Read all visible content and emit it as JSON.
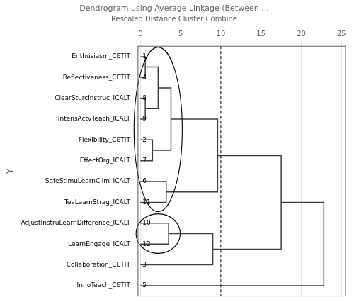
{
  "chart_data": {
    "type": "dendrogram",
    "title": "Dendrogram using Average Linkage (Between ...",
    "subtitle": "Rescaled Distance Cluster Combine",
    "ylabel": "Y",
    "categories": [
      "Enthusiasm_CETIT",
      "Reflectiveness_CETIT",
      "ClearSturcInstruc_ICALT",
      "IntensActvTeach_ICALT",
      "Flexibility_CETIT",
      "EffectOrg_ICALT",
      "SafeStimuLearnClim_ICALT",
      "TeaLearnStrag_ICALT",
      "AdjustInstruLearnDifference_ICALT",
      "LearnEngage_ICALT",
      "Collaboration_CETIT",
      "InnoTeach_CETIT"
    ],
    "case_numbers": [
      1,
      4,
      8,
      9,
      2,
      7,
      6,
      11,
      10,
      12,
      3,
      5
    ],
    "merges": [
      {
        "clusters": [
          [
            "Enthusiasm_CETIT"
          ],
          [
            "Reflectiveness_CETIT"
          ]
        ],
        "distance": 0.6
      },
      {
        "clusters": [
          [
            "ClearSturcInstruc_ICALT"
          ],
          [
            "IntensActvTeach_ICALT"
          ]
        ],
        "distance": 0.6
      },
      {
        "clusters": [
          [
            "Enthusiasm_CETIT",
            "Reflectiveness_CETIT"
          ],
          [
            "ClearSturcInstruc_ICALT",
            "IntensActvTeach_ICALT"
          ]
        ],
        "distance": 2.2
      },
      {
        "clusters": [
          [
            "Flexibility_CETIT"
          ],
          [
            "EffectOrg_ICALT"
          ]
        ],
        "distance": 1.5
      },
      {
        "clusters": [
          [
            "Enthusiasm_CETIT",
            "Reflectiveness_CETIT",
            "ClearSturcInstruc_ICALT",
            "IntensActvTeach_ICALT"
          ],
          [
            "Flexibility_CETIT",
            "EffectOrg_ICALT"
          ]
        ],
        "distance": 3.8
      },
      {
        "clusters": [
          [
            "SafeStimuLearnClim_ICALT"
          ],
          [
            "TeaLearnStrag_ICALT"
          ]
        ],
        "distance": 3.2
      },
      {
        "clusters": [
          [
            "Enthusiasm_CETIT",
            "Reflectiveness_CETIT",
            "ClearSturcInstruc_ICALT",
            "IntensActvTeach_ICALT",
            "Flexibility_CETIT",
            "EffectOrg_ICALT"
          ],
          [
            "SafeStimuLearnClim_ICALT",
            "TeaLearnStrag_ICALT"
          ]
        ],
        "distance": 9.6
      },
      {
        "clusters": [
          [
            "AdjustInstruLearnDifference_ICALT"
          ],
          [
            "LearnEngage_ICALT"
          ]
        ],
        "distance": 3.5
      },
      {
        "clusters": [
          [
            "AdjustInstruLearnDifference_ICALT",
            "LearnEngage_ICALT"
          ],
          [
            "Collaboration_CETIT"
          ]
        ],
        "distance": 9.0
      },
      {
        "clusters": [
          [
            "Enthusiasm_CETIT",
            "Reflectiveness_CETIT",
            "ClearSturcInstruc_ICALT",
            "IntensActvTeach_ICALT",
            "Flexibility_CETIT",
            "EffectOrg_ICALT",
            "SafeStimuLearnClim_ICALT",
            "TeaLearnStrag_ICALT"
          ],
          [
            "AdjustInstruLearnDifference_ICALT",
            "LearnEngage_ICALT",
            "Collaboration_CETIT"
          ]
        ],
        "distance": 17.5
      },
      {
        "clusters": [
          [
            "Enthusiasm_CETIT",
            "Reflectiveness_CETIT",
            "ClearSturcInstruc_ICALT",
            "IntensActvTeach_ICALT",
            "Flexibility_CETIT",
            "EffectOrg_ICALT",
            "SafeStimuLearnClim_ICALT",
            "TeaLearnStrag_ICALT",
            "AdjustInstruLearnDifference_ICALT",
            "LearnEngage_ICALT",
            "Collaboration_CETIT"
          ],
          [
            "InnoTeach_CETIT"
          ]
        ],
        "distance": 22.8
      }
    ],
    "color": "#404040",
    "reference_x": 10,
    "ovals": [
      {
        "x": 2.2,
        "width": 6.0,
        "members": [
          "Enthusiasm_CETIT",
          "Reflectiveness_CETIT",
          "ClearSturcInstruc_ICALT",
          "IntensActvTeach_ICALT",
          "Flexibility_CETIT",
          "EffectOrg_ICALT",
          "SafeStimuLearnClim_ICALT",
          "TeaLearnStrag_ICALT"
        ]
      },
      {
        "x": 2.2,
        "width": 5.5,
        "members": [
          "AdjustInstruLearnDifference_ICALT",
          "LearnEngage_ICALT"
        ]
      }
    ],
    "xlim": [
      -0.3,
      25.5
    ],
    "xticks": [
      0,
      5,
      10,
      15,
      20,
      25
    ],
    "grid": true
  }
}
